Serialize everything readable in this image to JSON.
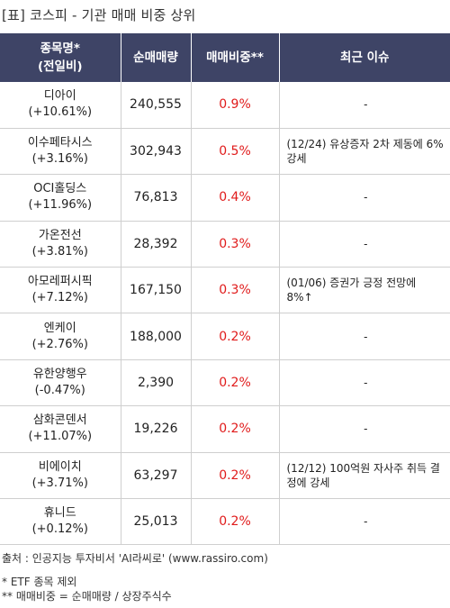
{
  "title": "[표] 코스피 - 기관 매매 비중 상위",
  "headers": {
    "name": [
      "종목명*",
      "(전일비)"
    ],
    "volume": "순매매량",
    "ratio": "매매비중**",
    "issue": "최근 이슈"
  },
  "rows": [
    {
      "name": "디아이",
      "change": "(+10.61%)",
      "volume": "240,555",
      "ratio": "0.9%",
      "issue": "-"
    },
    {
      "name": "이수페타시스",
      "change": "(+3.16%)",
      "volume": "302,943",
      "ratio": "0.5%",
      "issue": "(12/24) 유상증자 2차 제동에 6% 강세"
    },
    {
      "name": "OCI홀딩스",
      "change": "(+11.96%)",
      "volume": "76,813",
      "ratio": "0.4%",
      "issue": "-"
    },
    {
      "name": "가온전선",
      "change": "(+3.81%)",
      "volume": "28,392",
      "ratio": "0.3%",
      "issue": "-"
    },
    {
      "name": "아모레퍼시픽",
      "change": "(+7.12%)",
      "volume": "167,150",
      "ratio": "0.3%",
      "issue": "(01/06) 증권가 긍정 전망에 8%↑"
    },
    {
      "name": "엔케이",
      "change": "(+2.76%)",
      "volume": "188,000",
      "ratio": "0.2%",
      "issue": "-"
    },
    {
      "name": "유한양행우",
      "change": "(-0.47%)",
      "volume": "2,390",
      "ratio": "0.2%",
      "issue": "-"
    },
    {
      "name": "삼화콘덴서",
      "change": "(+11.07%)",
      "volume": "19,226",
      "ratio": "0.2%",
      "issue": "-"
    },
    {
      "name": "비에이치",
      "change": "(+3.71%)",
      "volume": "63,297",
      "ratio": "0.2%",
      "issue": "(12/12) 100억원 자사주 취득 결정에 강세"
    },
    {
      "name": "휴니드",
      "change": "(+0.12%)",
      "volume": "25,013",
      "ratio": "0.2%",
      "issue": "-"
    }
  ],
  "footer": {
    "source": "출처 : 인공지능 투자비서 'AI라씨로' (www.rassiro.com)",
    "note1": "* ETF 종목 제외",
    "note2": "** 매매비중 = 순매매량 / 상장주식수"
  },
  "colors": {
    "header_bg": "#3e4466",
    "ratio_text": "#e01b1b",
    "border": "#cfcfcf"
  }
}
